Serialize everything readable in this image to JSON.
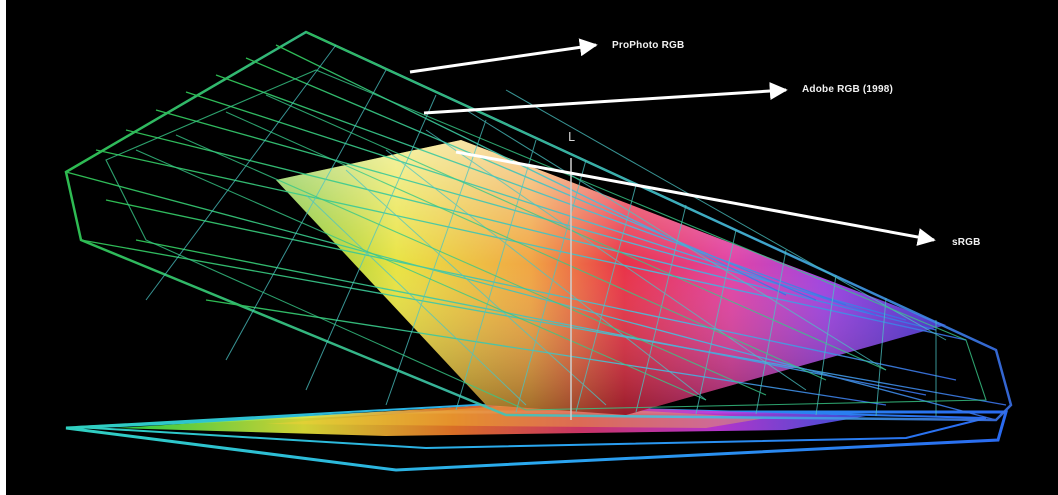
{
  "labels": {
    "prophoto": "ProPhoto RGB",
    "adobe": "Adobe RGB (1998)",
    "srgb": "sRGB",
    "axis": "L"
  },
  "colors": {
    "background": "#000000",
    "wire_green": "#3fd27a",
    "wire_cyan": "#4fc6d8",
    "wire_blue": "#3f7fe0",
    "arrow": "#ffffff"
  }
}
